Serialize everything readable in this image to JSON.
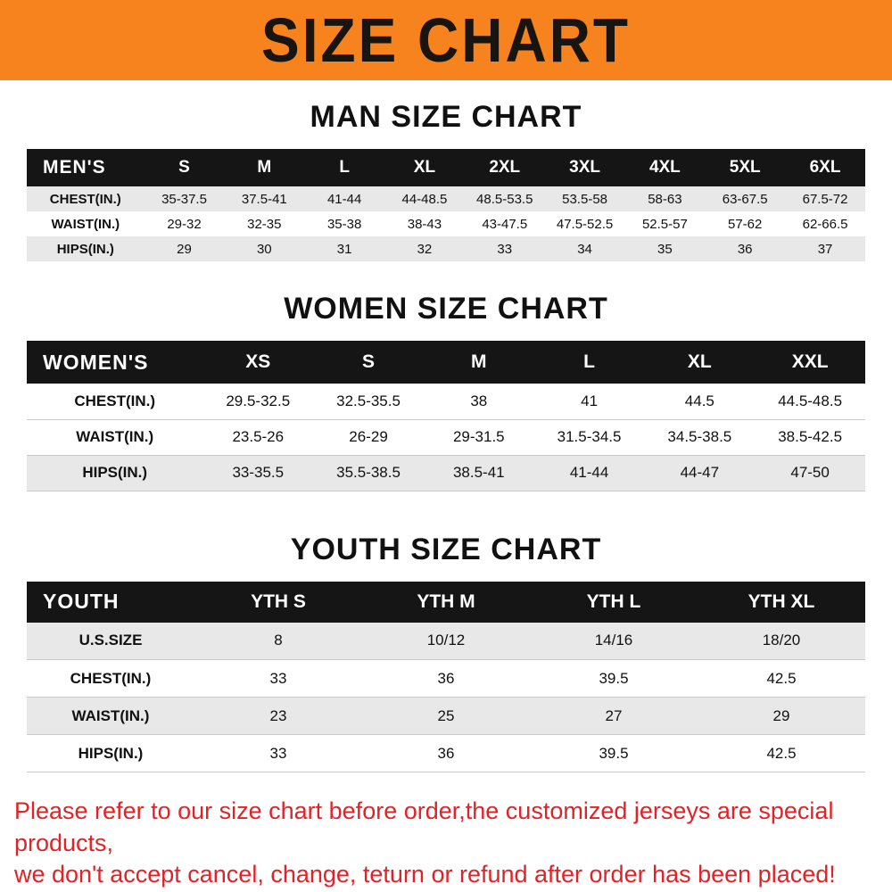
{
  "banner": {
    "title": "SIZE CHART",
    "bg_color": "#f6831d"
  },
  "sections": [
    {
      "heading": "MAN SIZE CHART",
      "table": {
        "header": [
          "MEN'S",
          "S",
          "M",
          "L",
          "XL",
          "2XL",
          "3XL",
          "4XL",
          "5XL",
          "6XL"
        ],
        "rows": [
          {
            "label": "CHEST(IN.)",
            "values": [
              "35-37.5",
              "37.5-41",
              "41-44",
              "44-48.5",
              "48.5-53.5",
              "53.5-58",
              "58-63",
              "63-67.5",
              "67.5-72"
            ]
          },
          {
            "label": "WAIST(IN.)",
            "values": [
              "29-32",
              "32-35",
              "35-38",
              "38-43",
              "43-47.5",
              "47.5-52.5",
              "52.5-57",
              "57-62",
              "62-66.5"
            ]
          },
          {
            "label": "HIPS(IN.)",
            "values": [
              "29",
              "30",
              "31",
              "32",
              "33",
              "34",
              "35",
              "36",
              "37"
            ]
          }
        ]
      }
    },
    {
      "heading": "WOMEN SIZE CHART",
      "table": {
        "header": [
          "WOMEN'S",
          "XS",
          "S",
          "M",
          "L",
          "XL",
          "XXL"
        ],
        "rows": [
          {
            "label": "CHEST(IN.)",
            "values": [
              "29.5-32.5",
              "32.5-35.5",
              "38",
              "41",
              "44.5",
              "44.5-48.5"
            ]
          },
          {
            "label": "WAIST(IN.)",
            "values": [
              "23.5-26",
              "26-29",
              "29-31.5",
              "31.5-34.5",
              "34.5-38.5",
              "38.5-42.5"
            ]
          },
          {
            "label": "HIPS(IN.)",
            "values": [
              "33-35.5",
              "35.5-38.5",
              "38.5-41",
              "41-44",
              "44-47",
              "47-50"
            ]
          }
        ]
      }
    },
    {
      "heading": "YOUTH SIZE CHART",
      "table": {
        "header": [
          "YOUTH",
          "YTH S",
          "YTH M",
          "YTH L",
          "YTH XL"
        ],
        "rows": [
          {
            "label": "U.S.SIZE",
            "values": [
              "8",
              "10/12",
              "14/16",
              "18/20"
            ]
          },
          {
            "label": "CHEST(IN.)",
            "values": [
              "33",
              "36",
              "39.5",
              "42.5"
            ]
          },
          {
            "label": "WAIST(IN.)",
            "values": [
              "23",
              "25",
              "27",
              "29"
            ]
          },
          {
            "label": "HIPS(IN.)",
            "values": [
              "33",
              "36",
              "39.5",
              "42.5"
            ]
          }
        ]
      }
    }
  ],
  "footer": {
    "line1": "Please refer to our size chart before order,the customized jerseys are special products,",
    "line2": "we don't accept cancel, change, teturn or refund after order has been placed!",
    "text_color": "#e32227"
  }
}
